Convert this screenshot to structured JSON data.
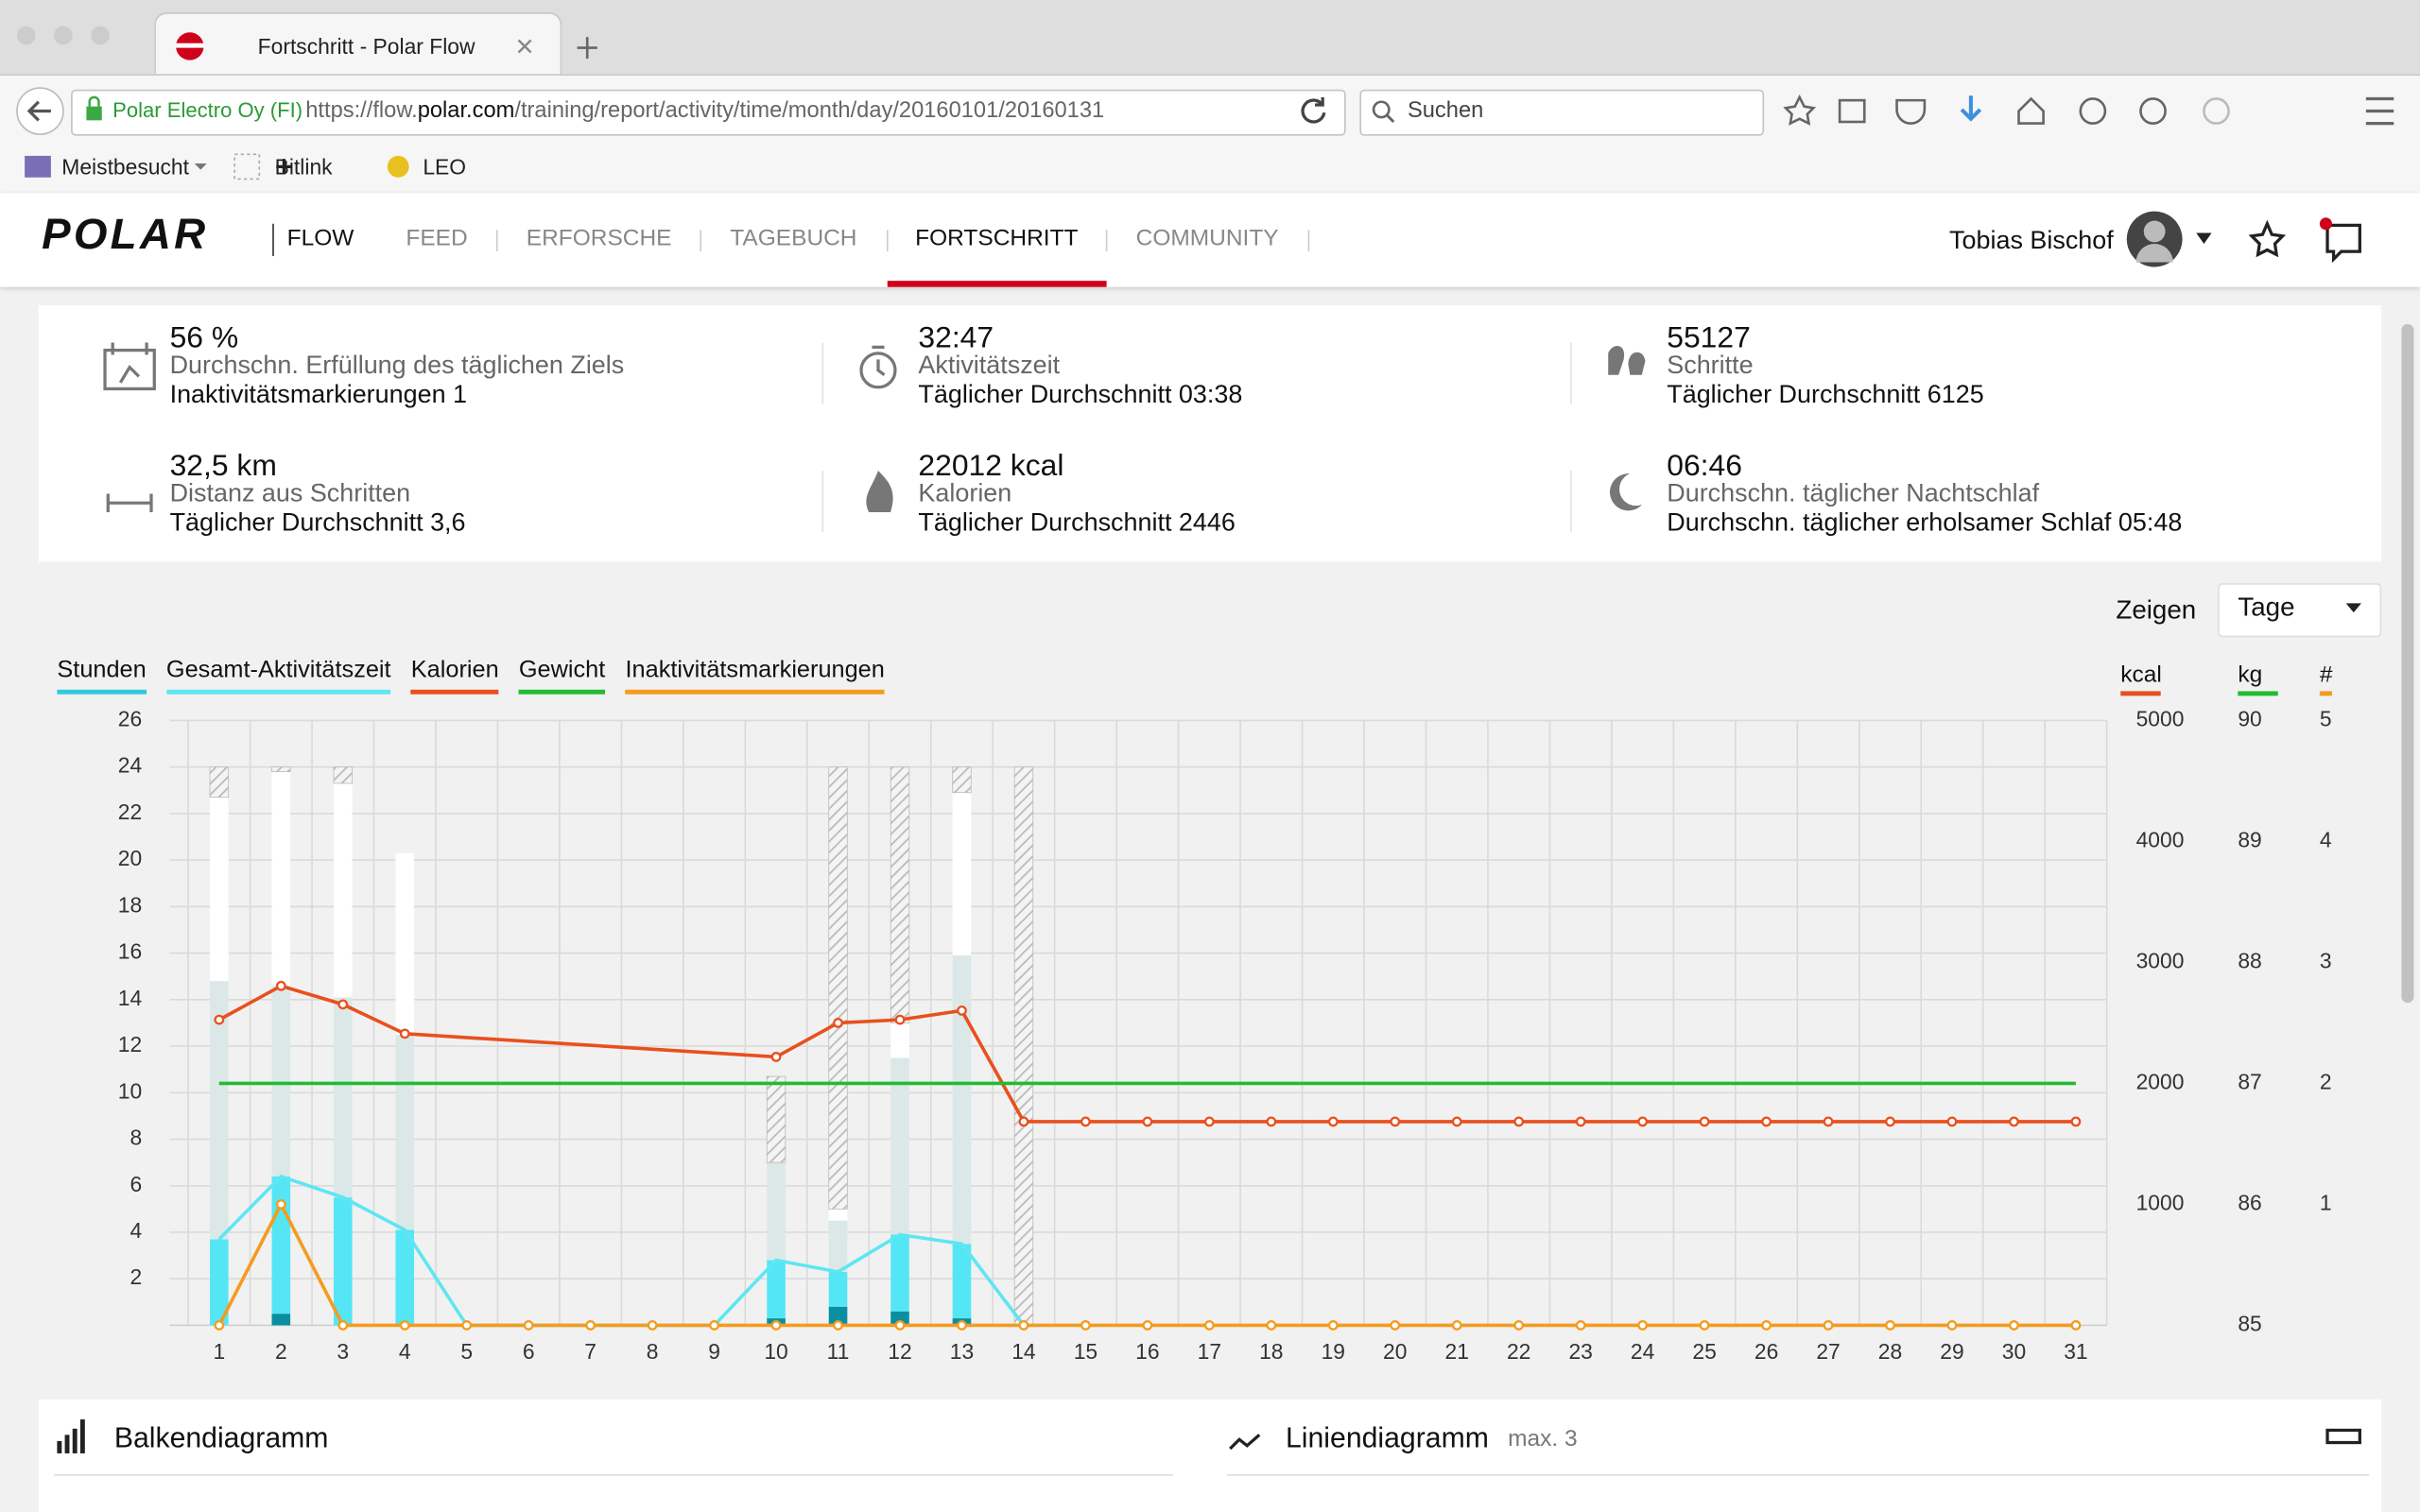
{
  "browser": {
    "tab_title": "Fortschritt - Polar Flow",
    "site_identity": "Polar Electro Oy (FI)",
    "url_prefix": "https://flow.",
    "url_domain": "polar.com",
    "url_path": "/training/report/activity/time/month/day/20160101/20160131",
    "search_placeholder": "Suchen",
    "bookmarks": [
      "Meistbesucht",
      "Bitlink",
      "LEO"
    ]
  },
  "nav": {
    "logo": "POLAR",
    "product": "FLOW",
    "items": [
      "FEED",
      "ERFORSCHE",
      "TAGEBUCH",
      "FORTSCHRITT",
      "COMMUNITY"
    ],
    "active": 3,
    "user": "Tobias Bischof"
  },
  "stats": [
    {
      "value": "56 %",
      "label": "Durchschn. Erfüllung des täglichen Ziels",
      "detail": "Inaktivitätsmarkierungen 1"
    },
    {
      "value": "32:47",
      "label": "Aktivitätszeit",
      "detail": "Täglicher Durchschnitt 03:38"
    },
    {
      "value": "55127",
      "label": "Schritte",
      "detail": "Täglicher Durchschnitt 6125"
    },
    {
      "value": "32,5 km",
      "label": "Distanz aus Schritten",
      "detail": "Täglicher Durchschnitt 3,6"
    },
    {
      "value": "22012 kcal",
      "label": "Kalorien",
      "detail": "Täglicher Durchschnitt 2446"
    },
    {
      "value": "06:46",
      "label": "Durchschn. täglicher Nachtschlaf",
      "detail": "Durchschn. täglicher erholsamer Schlaf 05:48"
    }
  ],
  "chart": {
    "type": "bar-line",
    "show_label": "Zeigen",
    "show_select": "Tage",
    "bars_name": "Stunden",
    "bars_color": "#33c9dc",
    "days": [
      1,
      2,
      3,
      4,
      5,
      6,
      7,
      8,
      9,
      10,
      11,
      12,
      13,
      14,
      15,
      16,
      17,
      18,
      19,
      20,
      21,
      22,
      23,
      24,
      25,
      26,
      27,
      28,
      29,
      30,
      31
    ],
    "ylim": [
      0,
      26
    ],
    "yticks": [
      2,
      4,
      6,
      8,
      10,
      12,
      14,
      16,
      18,
      20,
      22,
      24,
      26
    ],
    "grid": true,
    "kcal": {
      "label": "kcal",
      "color": "#e8501e",
      "lim": [
        0,
        5000
      ],
      "ticks": [
        1000,
        2000,
        3000,
        4000,
        5000
      ]
    },
    "kg": {
      "label": "kg",
      "color": "#22bb33",
      "lim": [
        85,
        90
      ],
      "ticks": [
        85,
        86,
        87,
        88,
        89,
        90
      ]
    },
    "count": {
      "label": "#",
      "color": "#f39c1f",
      "lim": [
        0,
        5
      ],
      "ticks": [
        1,
        2,
        3,
        4,
        5
      ]
    },
    "bars": [
      {
        "color": "#0a8fa0",
        "values": [
          0,
          0.5,
          0,
          0,
          null,
          null,
          null,
          null,
          null,
          0.3,
          0.8,
          0.6,
          0.3,
          0,
          null,
          null,
          null,
          null,
          null,
          null,
          null,
          null,
          null,
          null,
          null,
          null,
          null,
          null,
          null,
          null,
          null
        ]
      },
      {
        "color": "#55e6f5",
        "values": [
          3.7,
          5.9,
          5.5,
          4.1,
          null,
          null,
          null,
          null,
          null,
          2.5,
          1.5,
          3.3,
          3.2,
          0,
          null,
          null,
          null,
          null,
          null,
          null,
          null,
          null,
          null,
          null,
          null,
          null,
          null,
          null,
          null,
          null,
          null
        ]
      },
      {
        "color": "#dce8e8",
        "values": [
          11.1,
          8.2,
          8.6,
          8.4,
          null,
          null,
          null,
          null,
          null,
          4.2,
          2.2,
          7.6,
          12.4,
          0,
          null,
          null,
          null,
          null,
          null,
          null,
          null,
          null,
          null,
          null,
          null,
          null,
          null,
          null,
          null,
          null,
          null
        ]
      },
      {
        "color": "#ffffff",
        "values": [
          7.9,
          9.2,
          9.2,
          7.8,
          null,
          null,
          null,
          null,
          null,
          0,
          0.5,
          1.5,
          7,
          0,
          null,
          null,
          null,
          null,
          null,
          null,
          null,
          null,
          null,
          null,
          null,
          null,
          null,
          null,
          null,
          null,
          null
        ]
      },
      {
        "color": "#c8c8c8",
        "hatched": true,
        "values": [
          1.3,
          0.2,
          0.7,
          0,
          null,
          null,
          null,
          null,
          null,
          3.7,
          19,
          11,
          1.1,
          24,
          null,
          null,
          null,
          null,
          null,
          null,
          null,
          null,
          null,
          null,
          null,
          null,
          null,
          null,
          null,
          null,
          null
        ]
      }
    ],
    "lines": [
      {
        "name": "Gesamt-Aktivitätszeit",
        "axis": "y",
        "color": "#5ee6f2",
        "values": [
          3.7,
          6.4,
          5.5,
          4.1,
          0,
          0,
          0,
          0,
          0,
          2.8,
          2.3,
          3.9,
          3.5,
          0,
          null,
          null,
          null,
          null,
          null,
          null,
          null,
          null,
          null,
          null,
          null,
          null,
          null,
          null,
          null,
          null,
          null
        ]
      },
      {
        "name": "Kalorien",
        "axis": "kcal",
        "color": "#e8501e",
        "dots": true,
        "x": [
          1,
          2,
          3,
          4,
          10,
          11,
          12,
          13,
          14,
          15,
          16,
          17,
          18,
          19,
          20,
          21,
          22,
          23,
          24,
          25,
          26,
          27,
          28,
          29,
          30,
          31
        ],
        "values": [
          2526,
          2806,
          2653,
          2411,
          2219,
          2500,
          2526,
          2602,
          1684,
          1684,
          1684,
          1684,
          1684,
          1684,
          1684,
          1684,
          1684,
          1684,
          1684,
          1684,
          1684,
          1684,
          1684,
          1684,
          1684,
          1684
        ]
      },
      {
        "name": "Gewicht",
        "axis": "kg",
        "color": "#22bb33",
        "values": [
          87,
          87,
          87,
          87,
          87,
          87,
          87,
          87,
          87,
          87,
          87,
          87,
          87,
          87,
          87,
          87,
          87,
          87,
          87,
          87,
          87,
          87,
          87,
          87,
          87,
          87,
          87,
          87,
          87,
          87,
          87
        ]
      },
      {
        "name": "Inaktivitätsmarkierungen",
        "axis": "count",
        "color": "#f39c1f",
        "dots": true,
        "values": [
          0,
          1,
          0,
          0,
          0,
          0,
          0,
          0,
          0,
          0,
          0,
          0,
          0,
          0,
          0,
          0,
          0,
          0,
          0,
          0,
          0,
          0,
          0,
          0,
          0,
          0,
          0,
          0,
          0,
          0,
          0
        ]
      }
    ]
  },
  "panels": [
    {
      "title": "Balkendiagramm"
    },
    {
      "title": "Liniendiagramm",
      "note": "max. 3"
    }
  ]
}
